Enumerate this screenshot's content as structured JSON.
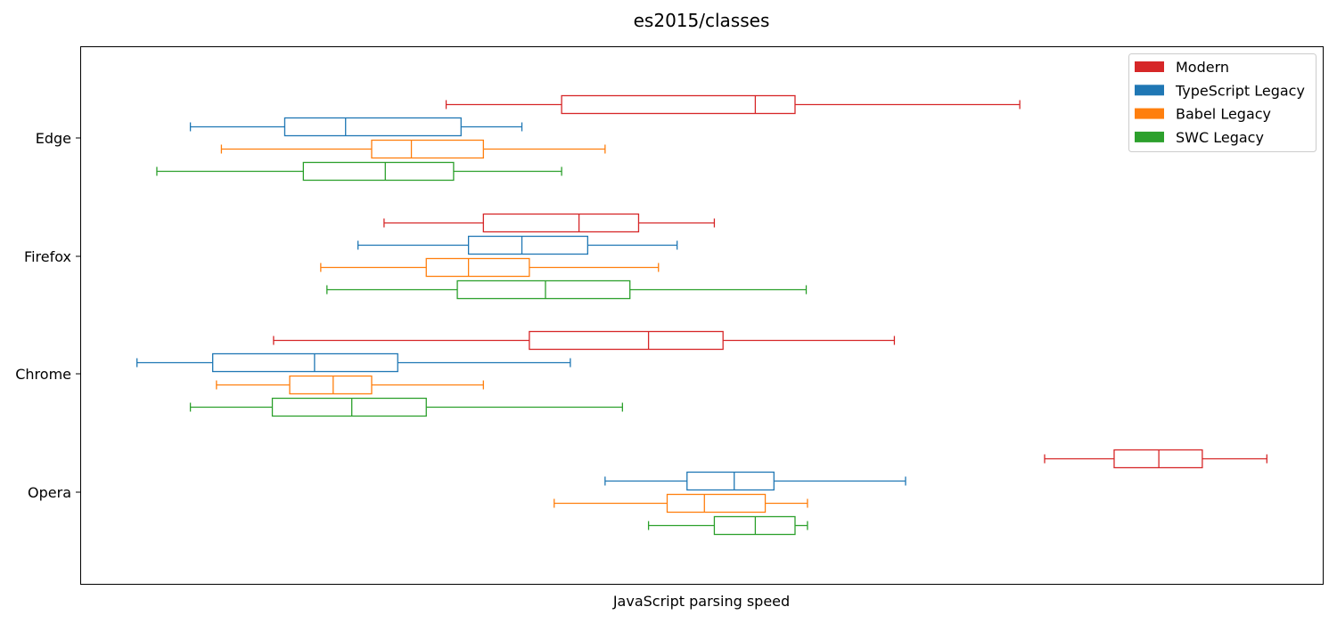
{
  "chart_data": {
    "type": "boxplot",
    "title": "es2015/classes",
    "xlabel": "JavaScript parsing speed",
    "ylabel": "",
    "x_tick_labels_shown": false,
    "grid": false,
    "legend_position": "top-right",
    "xlim": [
      0,
      100
    ],
    "categories": [
      "Edge",
      "Firefox",
      "Chrome",
      "Opera"
    ],
    "series": [
      {
        "name": "Modern",
        "color": "#d62728",
        "boxes": [
          {
            "category": "Edge",
            "whislo": 29.4,
            "q1": 38.7,
            "median": 54.3,
            "q3": 57.5,
            "whishi": 75.6
          },
          {
            "category": "Firefox",
            "whislo": 24.4,
            "q1": 32.4,
            "median": 40.1,
            "q3": 44.9,
            "whishi": 51.0
          },
          {
            "category": "Chrome",
            "whislo": 15.5,
            "q1": 36.1,
            "median": 45.7,
            "q3": 51.7,
            "whishi": 65.5
          },
          {
            "category": "Opera",
            "whislo": 77.6,
            "q1": 83.2,
            "median": 86.8,
            "q3": 90.3,
            "whishi": 95.5
          }
        ]
      },
      {
        "name": "TypeScript Legacy",
        "color": "#1f77b4",
        "boxes": [
          {
            "category": "Edge",
            "whislo": 8.8,
            "q1": 16.4,
            "median": 21.3,
            "q3": 30.6,
            "whishi": 35.5
          },
          {
            "category": "Firefox",
            "whislo": 22.3,
            "q1": 31.2,
            "median": 35.5,
            "q3": 40.8,
            "whishi": 48.0
          },
          {
            "category": "Chrome",
            "whislo": 4.5,
            "q1": 10.6,
            "median": 18.8,
            "q3": 25.5,
            "whishi": 39.4
          },
          {
            "category": "Opera",
            "whislo": 42.2,
            "q1": 48.8,
            "median": 52.6,
            "q3": 55.8,
            "whishi": 66.4
          }
        ]
      },
      {
        "name": "Babel Legacy",
        "color": "#ff7f0e",
        "boxes": [
          {
            "category": "Edge",
            "whislo": 11.3,
            "q1": 23.4,
            "median": 26.6,
            "q3": 32.4,
            "whishi": 42.2
          },
          {
            "category": "Firefox",
            "whislo": 19.3,
            "q1": 27.8,
            "median": 31.2,
            "q3": 36.1,
            "whishi": 46.5
          },
          {
            "category": "Chrome",
            "whislo": 10.9,
            "q1": 16.8,
            "median": 20.3,
            "q3": 23.4,
            "whishi": 32.4
          },
          {
            "category": "Opera",
            "whislo": 38.1,
            "q1": 47.2,
            "median": 50.2,
            "q3": 55.1,
            "whishi": 58.5
          }
        ]
      },
      {
        "name": "SWC Legacy",
        "color": "#2ca02c",
        "boxes": [
          {
            "category": "Edge",
            "whislo": 6.1,
            "q1": 17.9,
            "median": 24.5,
            "q3": 30.0,
            "whishi": 38.7
          },
          {
            "category": "Firefox",
            "whislo": 19.8,
            "q1": 30.3,
            "median": 37.4,
            "q3": 44.2,
            "whishi": 58.4
          },
          {
            "category": "Chrome",
            "whislo": 8.8,
            "q1": 15.4,
            "median": 21.8,
            "q3": 27.8,
            "whishi": 43.6
          },
          {
            "category": "Opera",
            "whislo": 45.7,
            "q1": 51.0,
            "median": 54.3,
            "q3": 57.5,
            "whishi": 58.5
          }
        ]
      }
    ]
  }
}
